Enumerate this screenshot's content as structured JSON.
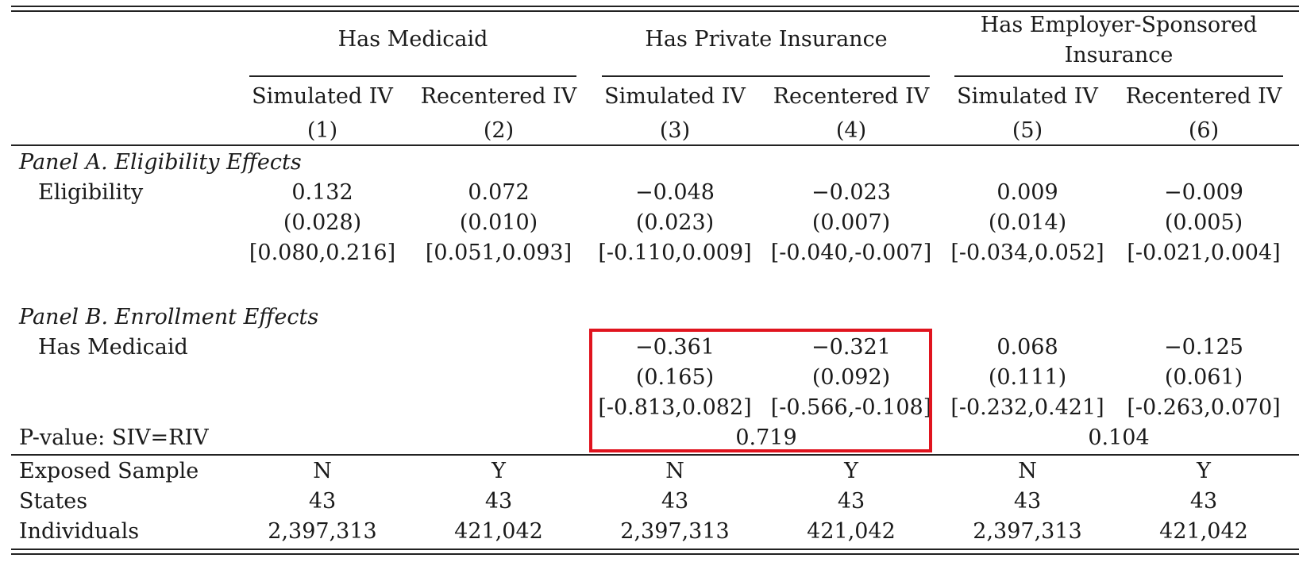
{
  "header": {
    "groups": [
      "Has Medicaid",
      "Has Private Insurance",
      "Has Employer-Sponsored",
      "Insurance"
    ],
    "method_labels": [
      "Simulated IV",
      "Recentered IV",
      "Simulated IV",
      "Recentered IV",
      "Simulated IV",
      "Recentered IV"
    ],
    "col_numbers": [
      "(1)",
      "(2)",
      "(3)",
      "(4)",
      "(5)",
      "(6)"
    ]
  },
  "panel_a": {
    "title": "Panel A. Eligibility Effects",
    "row_label": "Eligibility",
    "coefs": [
      "0.132",
      "0.072",
      "−0.048",
      "−0.023",
      "0.009",
      "−0.009"
    ],
    "ses": [
      "(0.028)",
      "(0.010)",
      "(0.023)",
      "(0.007)",
      "(0.014)",
      "(0.005)"
    ],
    "cis": [
      "[0.080,0.216]",
      "[0.051,0.093]",
      "[-0.110,0.009]",
      "[-0.040,-0.007]",
      "[-0.034,0.052]",
      "[-0.021,0.004]"
    ]
  },
  "panel_b": {
    "title": "Panel B. Enrollment Effects",
    "row_label": "Has Medicaid",
    "coefs": [
      "−0.361",
      "−0.321",
      "0.068",
      "−0.125"
    ],
    "ses": [
      "(0.165)",
      "(0.092)",
      "(0.111)",
      "(0.061)"
    ],
    "cis": [
      "[-0.813,0.082]",
      "[-0.566,-0.108]",
      "[-0.232,0.421]",
      "[-0.263,0.070]"
    ],
    "pvalue_label": "P-value: SIV=RIV",
    "pvalues": [
      "0.719",
      "0.104"
    ]
  },
  "footer": {
    "rows": [
      {
        "label": "Exposed Sample",
        "values": [
          "N",
          "Y",
          "N",
          "Y",
          "N",
          "Y"
        ]
      },
      {
        "label": "States",
        "values": [
          "43",
          "43",
          "43",
          "43",
          "43",
          "43"
        ]
      },
      {
        "label": "Individuals",
        "values": [
          "2,397,313",
          "421,042",
          "2,397,313",
          "421,042",
          "2,397,313",
          "421,042"
        ]
      }
    ]
  },
  "colors": {
    "highlight_box": "#e0141e"
  }
}
